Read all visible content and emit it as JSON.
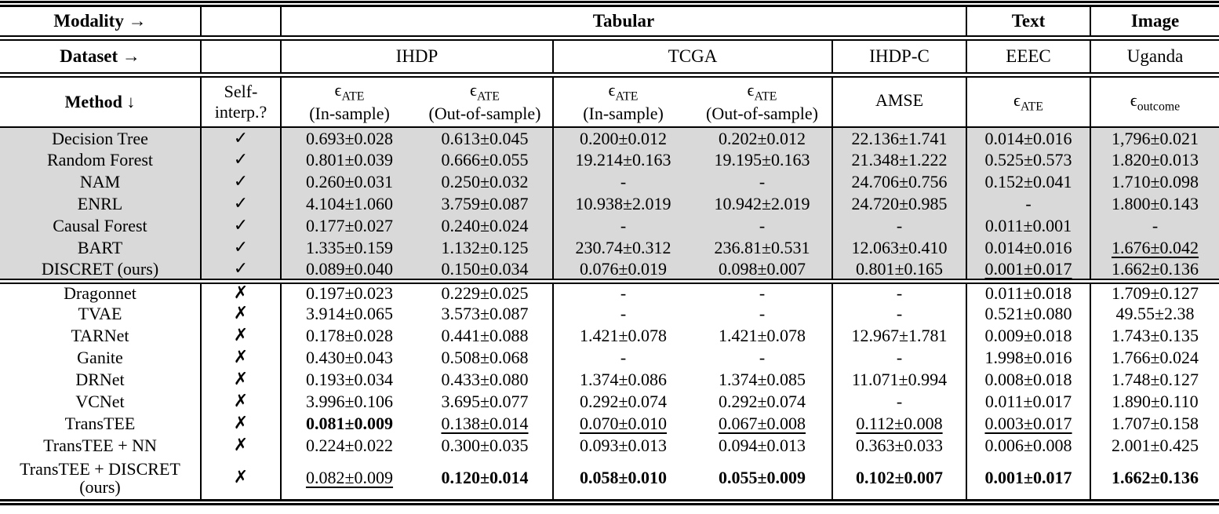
{
  "colors": {
    "shaded_row_bg": "#d9d9d9",
    "rule_color": "#000000",
    "text_color": "#000000"
  },
  "header": {
    "modality_label": "Modality →",
    "modality_groups": [
      {
        "label": "Tabular"
      },
      {
        "label": "Text"
      },
      {
        "label": "Image"
      }
    ],
    "dataset_label": "Dataset →",
    "datasets": [
      {
        "label": "IHDP"
      },
      {
        "label": "TCGA"
      },
      {
        "label": "IHDP-C"
      },
      {
        "label": "EEEC"
      },
      {
        "label": "Uganda"
      }
    ],
    "method_label": "Method ↓",
    "self_interp_line1": "Self-",
    "self_interp_line2": "interp.?",
    "metrics": [
      {
        "symbol": "ϵ",
        "sub": "ATE",
        "note": "(In-sample)"
      },
      {
        "symbol": "ϵ",
        "sub": "ATE",
        "note": "(Out-of-sample)"
      },
      {
        "symbol": "ϵ",
        "sub": "ATE",
        "note": "(In-sample)"
      },
      {
        "symbol": "ϵ",
        "sub": "ATE",
        "note": "(Out-of-sample)"
      },
      {
        "symbol": "AMSE",
        "sub": "",
        "note": ""
      },
      {
        "symbol": "ϵ",
        "sub": "ATE",
        "note": ""
      },
      {
        "symbol": "ϵ",
        "sub": "outcome",
        "note": ""
      }
    ]
  },
  "body": {
    "check_true": "✓",
    "check_false": "✗",
    "sections": [
      {
        "name": "self-interpretable",
        "shaded": true,
        "rows": [
          {
            "method": "Decision Tree",
            "interp": true,
            "cells": [
              {
                "t": "0.693±0.028"
              },
              {
                "t": "0.613±0.045"
              },
              {
                "t": "0.200±0.012"
              },
              {
                "t": "0.202±0.012"
              },
              {
                "t": "22.136±1.741"
              },
              {
                "t": "0.014±0.016"
              },
              {
                "t": "1,796±0.021"
              }
            ]
          },
          {
            "method": "Random Forest",
            "interp": true,
            "cells": [
              {
                "t": "0.801±0.039"
              },
              {
                "t": "0.666±0.055"
              },
              {
                "t": "19.214±0.163"
              },
              {
                "t": "19.195±0.163"
              },
              {
                "t": "21.348±1.222"
              },
              {
                "t": "0.525±0.573"
              },
              {
                "t": "1.820±0.013"
              }
            ]
          },
          {
            "method": "NAM",
            "interp": true,
            "cells": [
              {
                "t": "0.260±0.031"
              },
              {
                "t": "0.250±0.032"
              },
              {
                "t": "-"
              },
              {
                "t": "-"
              },
              {
                "t": "24.706±0.756"
              },
              {
                "t": "0.152±0.041"
              },
              {
                "t": "1.710±0.098"
              }
            ]
          },
          {
            "method": "ENRL",
            "interp": true,
            "cells": [
              {
                "t": "4.104±1.060"
              },
              {
                "t": "3.759±0.087"
              },
              {
                "t": "10.938±2.019"
              },
              {
                "t": "10.942±2.019"
              },
              {
                "t": "24.720±0.985"
              },
              {
                "t": "-"
              },
              {
                "t": "1.800±0.143"
              }
            ]
          },
          {
            "method": "Causal Forest",
            "interp": true,
            "cells": [
              {
                "t": "0.177±0.027"
              },
              {
                "t": "0.240±0.024"
              },
              {
                "t": "-"
              },
              {
                "t": "-"
              },
              {
                "t": "-"
              },
              {
                "t": "0.011±0.001"
              },
              {
                "t": "-"
              }
            ]
          },
          {
            "method": "BART",
            "interp": true,
            "cells": [
              {
                "t": "1.335±0.159"
              },
              {
                "t": "1.132±0.125"
              },
              {
                "t": "230.74±0.312"
              },
              {
                "t": "236.81±0.531"
              },
              {
                "t": "12.063±0.410"
              },
              {
                "t": "0.014±0.016"
              },
              {
                "t": "1.676±0.042",
                "s": "u"
              }
            ]
          },
          {
            "method": "DISCRET (ours)",
            "interp": true,
            "cells": [
              {
                "t": "0.089±0.040"
              },
              {
                "t": "0.150±0.034"
              },
              {
                "t": "0.076±0.019"
              },
              {
                "t": "0.098±0.007"
              },
              {
                "t": "0.801±0.165"
              },
              {
                "t": "0.001±0.017",
                "s": "u"
              },
              {
                "t": "1.662±0.136"
              }
            ]
          }
        ]
      },
      {
        "name": "not-self-interpretable",
        "shaded": false,
        "rows": [
          {
            "method": "Dragonnet",
            "interp": false,
            "cells": [
              {
                "t": "0.197±0.023"
              },
              {
                "t": "0.229±0.025"
              },
              {
                "t": "-"
              },
              {
                "t": "-"
              },
              {
                "t": "-"
              },
              {
                "t": "0.011±0.018"
              },
              {
                "t": "1.709±0.127"
              }
            ]
          },
          {
            "method": "TVAE",
            "interp": false,
            "cells": [
              {
                "t": "3.914±0.065"
              },
              {
                "t": "3.573±0.087"
              },
              {
                "t": "-"
              },
              {
                "t": "-"
              },
              {
                "t": "-"
              },
              {
                "t": "0.521±0.080"
              },
              {
                "t": "49.55±2.38"
              }
            ]
          },
          {
            "method": "TARNet",
            "interp": false,
            "cells": [
              {
                "t": "0.178±0.028"
              },
              {
                "t": "0.441±0.088"
              },
              {
                "t": "1.421±0.078"
              },
              {
                "t": "1.421±0.078"
              },
              {
                "t": "12.967±1.781"
              },
              {
                "t": "0.009±0.018"
              },
              {
                "t": "1.743±0.135"
              }
            ]
          },
          {
            "method": "Ganite",
            "interp": false,
            "cells": [
              {
                "t": "0.430±0.043"
              },
              {
                "t": "0.508±0.068"
              },
              {
                "t": "-"
              },
              {
                "t": "-"
              },
              {
                "t": "-"
              },
              {
                "t": "1.998±0.016"
              },
              {
                "t": "1.766±0.024"
              }
            ]
          },
          {
            "method": "DRNet",
            "interp": false,
            "cells": [
              {
                "t": "0.193±0.034"
              },
              {
                "t": "0.433±0.080"
              },
              {
                "t": "1.374±0.086"
              },
              {
                "t": "1.374±0.085"
              },
              {
                "t": "11.071±0.994"
              },
              {
                "t": "0.008±0.018"
              },
              {
                "t": "1.748±0.127"
              }
            ]
          },
          {
            "method": "VCNet",
            "interp": false,
            "cells": [
              {
                "t": "3.996±0.106"
              },
              {
                "t": "3.695±0.077"
              },
              {
                "t": "0.292±0.074"
              },
              {
                "t": "0.292±0.074"
              },
              {
                "t": "-"
              },
              {
                "t": "0.011±0.017"
              },
              {
                "t": "1.890±0.110"
              }
            ]
          },
          {
            "method": "TransTEE",
            "interp": false,
            "cells": [
              {
                "t": "0.081±0.009",
                "s": "b"
              },
              {
                "t": "0.138±0.014",
                "s": "u"
              },
              {
                "t": "0.070±0.010",
                "s": "u"
              },
              {
                "t": "0.067±0.008",
                "s": "u"
              },
              {
                "t": "0.112±0.008",
                "s": "u"
              },
              {
                "t": "0.003±0.017",
                "s": "u"
              },
              {
                "t": "1.707±0.158"
              }
            ]
          },
          {
            "method": "TransTEE + NN",
            "interp": false,
            "cells": [
              {
                "t": "0.224±0.022"
              },
              {
                "t": "0.300±0.035"
              },
              {
                "t": "0.093±0.013"
              },
              {
                "t": "0.094±0.013"
              },
              {
                "t": "0.363±0.033"
              },
              {
                "t": "0.006±0.008"
              },
              {
                "t": "2.001±0.425"
              }
            ]
          },
          {
            "method": "TransTEE + DISCRET (ours)",
            "interp": false,
            "cells": [
              {
                "t": "0.082±0.009",
                "s": "u"
              },
              {
                "t": "0.120±0.014",
                "s": "b"
              },
              {
                "t": "0.058±0.010",
                "s": "b"
              },
              {
                "t": "0.055±0.009",
                "s": "b"
              },
              {
                "t": "0.102±0.007",
                "s": "b"
              },
              {
                "t": "0.001±0.017",
                "s": "b"
              },
              {
                "t": "1.662±0.136",
                "s": "b"
              }
            ]
          }
        ]
      }
    ]
  }
}
